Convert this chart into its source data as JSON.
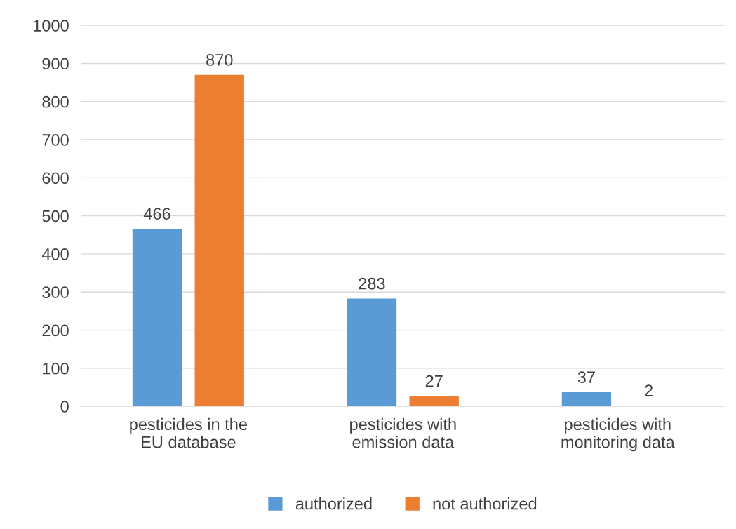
{
  "chart_data": {
    "type": "bar",
    "categories": [
      "pesticides in the EU database",
      "pesticides with emission data",
      "pesticides with monitoring data"
    ],
    "series": [
      {
        "name": "authorized",
        "color": "#5b9bd5",
        "values": [
          466,
          283,
          37
        ]
      },
      {
        "name": "not authorized",
        "color": "#ed7d31",
        "values": [
          870,
          27,
          2
        ]
      }
    ],
    "ylim": [
      0,
      1000
    ],
    "yticks": [
      0,
      100,
      200,
      300,
      400,
      500,
      600,
      700,
      800,
      900,
      1000
    ],
    "grid": "y",
    "legend": "bottom",
    "data_labels": true
  }
}
